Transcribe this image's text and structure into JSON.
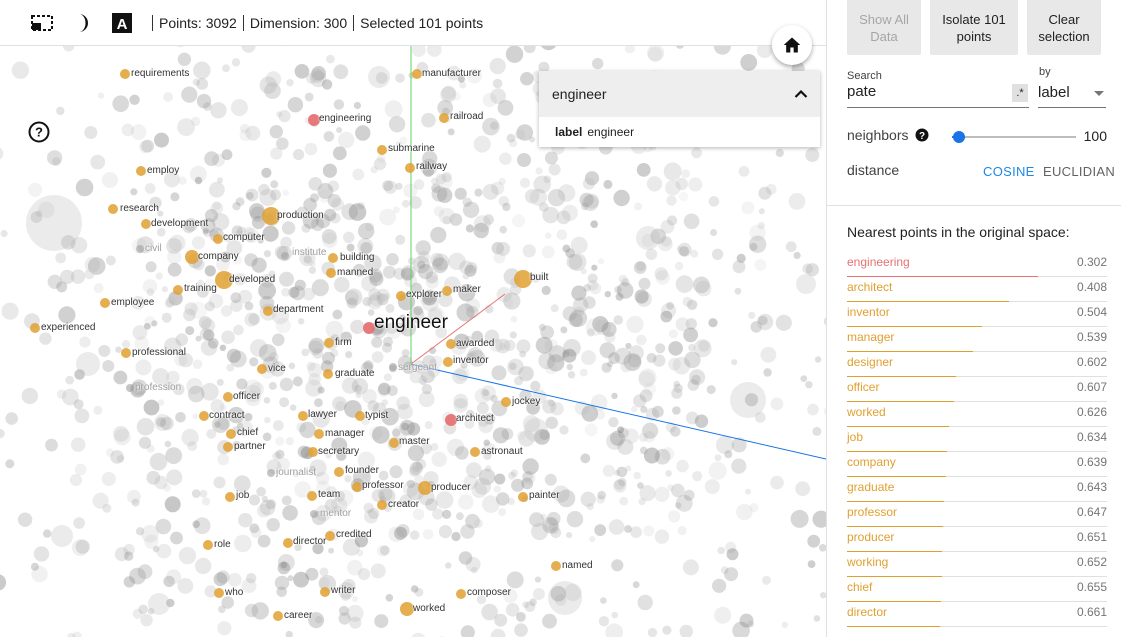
{
  "toolbar": {
    "points_label": "Points: 3092",
    "dimension_label": "Dimension: 300",
    "selected_label": "Selected 101 points",
    "icons": [
      "selection-box-icon",
      "night-mode-icon",
      "label-toggle-icon"
    ]
  },
  "search_popup": {
    "title": "engineer",
    "row_key": "label",
    "row_value": "engineer"
  },
  "panel": {
    "show_all_label": "Show All Data",
    "isolate_label": "Isolate 101 points",
    "clear_label": "Clear selection",
    "search_label": "Search",
    "search_value": "pate",
    "regex_label": ".*",
    "by_label": "by",
    "by_value": "label",
    "neighbors_label": "neighbors",
    "neighbors_value": "100",
    "neighbors_fraction": 0.06,
    "distance_label": "distance",
    "cosine_label": "COSINE",
    "euclidian_label": "EUCLIDIAN",
    "nearest_title": "Nearest points in the original space:"
  },
  "colors": {
    "accent": "#1e88e5",
    "highlight_red": "#e57373",
    "neighbor_orange": "#e0a030",
    "point_gray": "#b0b0b0"
  },
  "nearest": [
    {
      "word": "engineering",
      "dist": "0.302"
    },
    {
      "word": "architect",
      "dist": "0.408"
    },
    {
      "word": "inventor",
      "dist": "0.504"
    },
    {
      "word": "manager",
      "dist": "0.539"
    },
    {
      "word": "designer",
      "dist": "0.602"
    },
    {
      "word": "officer",
      "dist": "0.607"
    },
    {
      "word": "worked",
      "dist": "0.626"
    },
    {
      "word": "job",
      "dist": "0.634"
    },
    {
      "word": "company",
      "dist": "0.639"
    },
    {
      "word": "graduate",
      "dist": "0.643"
    },
    {
      "word": "professor",
      "dist": "0.647"
    },
    {
      "word": "producer",
      "dist": "0.651"
    },
    {
      "word": "working",
      "dist": "0.652"
    },
    {
      "word": "chief",
      "dist": "0.655"
    },
    {
      "word": "director",
      "dist": "0.661"
    }
  ],
  "labels": {
    "requirements": "requirements",
    "manufacturer": "manufacturer",
    "engineering": "engineering",
    "railroad": "railroad",
    "submarine": "submarine",
    "railway": "railway",
    "employ": "employ",
    "research": "research",
    "development": "development",
    "production": "production",
    "computer": "computer",
    "civil": "civil",
    "company": "company",
    "institute": "institute",
    "building": "building",
    "manned": "manned",
    "training": "training",
    "developed": "developed",
    "built": "built",
    "explorer": "explorer",
    "maker": "maker",
    "employee": "employee",
    "department": "department",
    "experienced": "experienced",
    "engineer": "engineer",
    "firm": "firm",
    "awarded": "awarded",
    "professional": "professional",
    "inventor": "inventor",
    "vice": "vice",
    "graduate": "graduate",
    "sergeant": "sergeant",
    "profession": "profession",
    "officer": "officer",
    "jockey": "jockey",
    "contract": "contract",
    "lawyer": "lawyer",
    "typist": "typist",
    "architect": "architect",
    "chief": "chief",
    "manager": "manager",
    "partner": "partner",
    "secretary": "secretary",
    "master": "master",
    "astronaut": "astronaut",
    "journalist": "journalist",
    "founder": "founder",
    "professor": "professor",
    "producer": "producer",
    "job": "job",
    "team": "team",
    "creator": "creator",
    "painter": "painter",
    "mentor": "mentor",
    "credited": "credited",
    "role": "role",
    "director": "director",
    "named": "named",
    "who": "who",
    "writer": "writer",
    "composer": "composer",
    "career": "career",
    "worked": "worked"
  }
}
